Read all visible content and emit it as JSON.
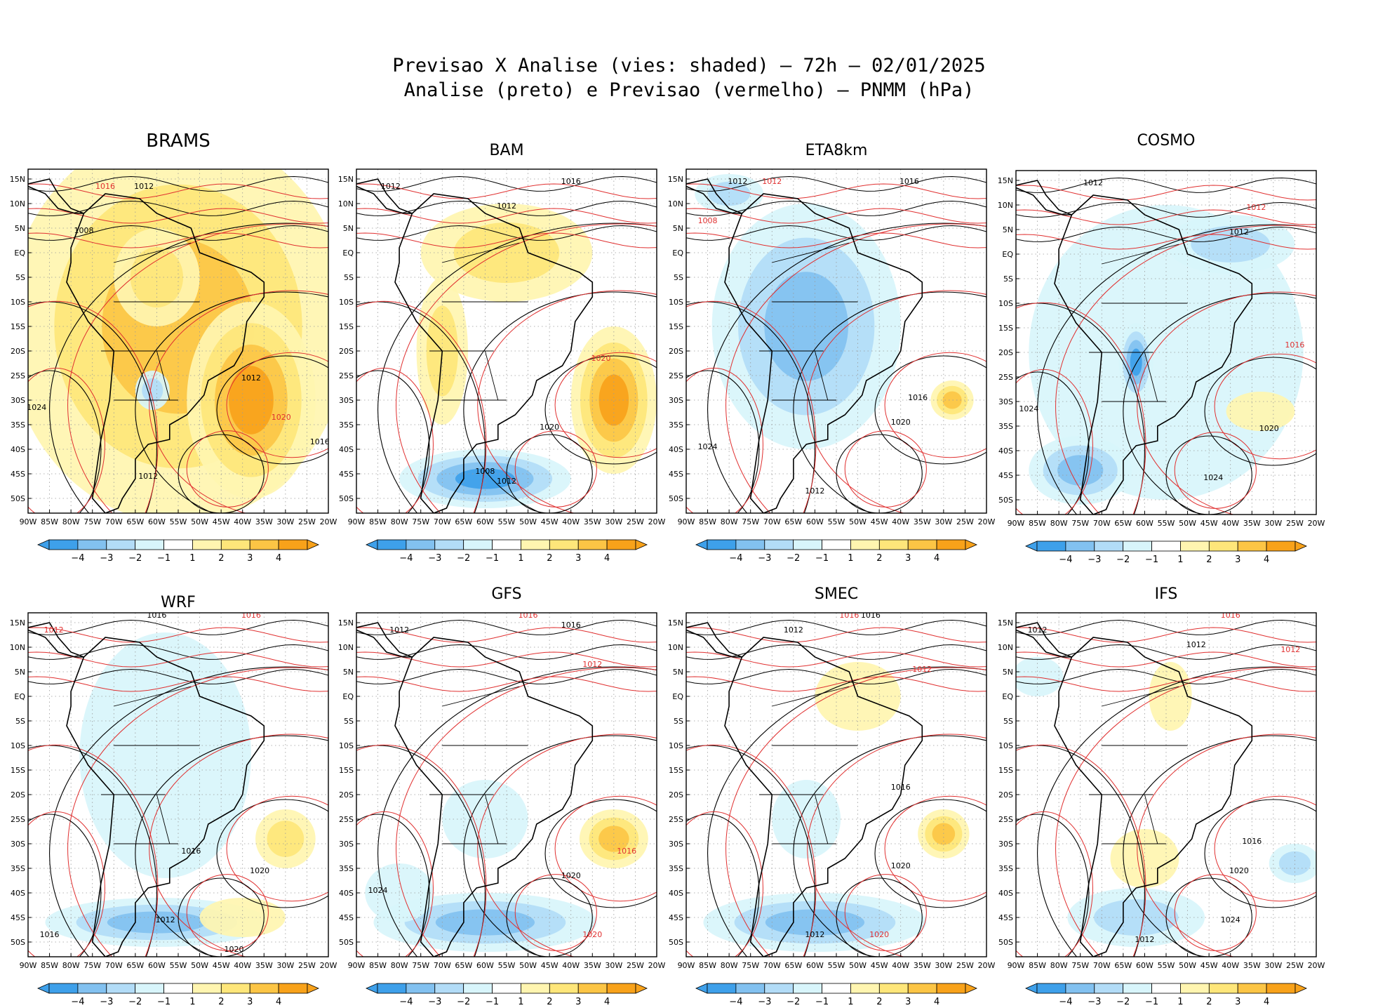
{
  "header": {
    "line1": "Previsao X Analise (vies: shaded) – 72h – 02/01/2025",
    "line2": "Analise (preto) e Previsao (vermelho) – PNMM (hPa)"
  },
  "colors": {
    "neg4": "#3ea0ea",
    "neg3": "#82c1f0",
    "neg2": "#b2dcf7",
    "neg1": "#d8f5fb",
    "zero": "#ffffff",
    "pos1": "#fff5b0",
    "pos2": "#fee67a",
    "pos3": "#fcc545",
    "pos4": "#f8a21a",
    "analysis": "#000000",
    "forecast": "#e03030",
    "land": "#000000",
    "grid": "#9a9a9a"
  },
  "chart_data": {
    "type": "heatmap",
    "variable": "PNMM (hPa)",
    "shading": "vies (forecast - analysis)",
    "lon_range": [
      -90,
      -20
    ],
    "lat_range": [
      -53,
      17
    ],
    "x_ticks": [
      "90W",
      "85W",
      "80W",
      "75W",
      "70W",
      "65W",
      "60W",
      "55W",
      "50W",
      "45W",
      "40W",
      "35W",
      "30W",
      "25W",
      "20W"
    ],
    "y_ticks": [
      "15N",
      "10N",
      "5N",
      "EQ",
      "5S",
      "10S",
      "15S",
      "20S",
      "25S",
      "30S",
      "35S",
      "40S",
      "45S",
      "50S"
    ],
    "colorbar_labels": [
      "−4",
      "−3",
      "−2",
      "−1",
      "1",
      "2",
      "3",
      "4"
    ],
    "panels": [
      {
        "name": "BRAMS",
        "bias_regions": [
          {
            "lon": -55,
            "lat": -15,
            "rlon": 40,
            "rlat": 40,
            "value": 3
          },
          {
            "lon": -38,
            "lat": -30,
            "rlon": 15,
            "rlat": 20,
            "value": 4
          },
          {
            "lon": -60,
            "lat": -5,
            "rlon": 10,
            "rlat": 10,
            "value": 2
          },
          {
            "lon": -61,
            "lat": -28,
            "rlon": 4,
            "rlat": 4,
            "value": -2
          }
        ],
        "labels": [
          {
            "lon": -72,
            "lat": 13,
            "text": "1016",
            "c": "f"
          },
          {
            "lon": -63,
            "lat": 13,
            "text": "1012",
            "c": "a"
          },
          {
            "lon": -77,
            "lat": 4,
            "text": "1008",
            "c": "a"
          },
          {
            "lon": -38,
            "lat": -26,
            "text": "1012",
            "c": "a"
          },
          {
            "lon": -88,
            "lat": -32,
            "text": "1024",
            "c": "a"
          },
          {
            "lon": -31,
            "lat": -34,
            "text": "1020",
            "c": "f"
          },
          {
            "lon": -62,
            "lat": -46,
            "text": "1012",
            "c": "a"
          },
          {
            "lon": -22,
            "lat": -39,
            "text": "1016",
            "c": "a"
          }
        ]
      },
      {
        "name": "BAM",
        "bias_regions": [
          {
            "lon": -55,
            "lat": 0,
            "rlon": 20,
            "rlat": 10,
            "value": 2
          },
          {
            "lon": -30,
            "lat": -30,
            "rlon": 10,
            "rlat": 15,
            "value": 4
          },
          {
            "lon": -60,
            "lat": -46,
            "rlon": 20,
            "rlat": 6,
            "value": -4
          },
          {
            "lon": -70,
            "lat": -20,
            "rlon": 6,
            "rlat": 15,
            "value": 2
          }
        ],
        "labels": [
          {
            "lon": -40,
            "lat": 14,
            "text": "1016",
            "c": "a"
          },
          {
            "lon": -82,
            "lat": 13,
            "text": "1012",
            "c": "a"
          },
          {
            "lon": -55,
            "lat": 9,
            "text": "1012",
            "c": "a"
          },
          {
            "lon": -33,
            "lat": -22,
            "text": "1020",
            "c": "f"
          },
          {
            "lon": -60,
            "lat": -45,
            "text": "1008",
            "c": "a"
          },
          {
            "lon": -55,
            "lat": -47,
            "text": "1012",
            "c": "a"
          },
          {
            "lon": -45,
            "lat": -36,
            "text": "1020",
            "c": "a"
          }
        ]
      },
      {
        "name": "ETA8km",
        "bias_regions": [
          {
            "lon": -62,
            "lat": -15,
            "rlon": 22,
            "rlat": 25,
            "value": -3
          },
          {
            "lon": -28,
            "lat": -30,
            "rlon": 5,
            "rlat": 4,
            "value": 3
          },
          {
            "lon": -80,
            "lat": 12,
            "rlon": 8,
            "rlat": 4,
            "value": -2
          }
        ],
        "labels": [
          {
            "lon": -78,
            "lat": 14,
            "text": "1012",
            "c": "a"
          },
          {
            "lon": -70,
            "lat": 14,
            "text": "1012",
            "c": "f"
          },
          {
            "lon": -38,
            "lat": 14,
            "text": "1016",
            "c": "a"
          },
          {
            "lon": -85,
            "lat": 6,
            "text": "1008",
            "c": "f"
          },
          {
            "lon": -85,
            "lat": -40,
            "text": "1024",
            "c": "a"
          },
          {
            "lon": -40,
            "lat": -35,
            "text": "1020",
            "c": "a"
          },
          {
            "lon": -60,
            "lat": -49,
            "text": "1012",
            "c": "a"
          },
          {
            "lon": -36,
            "lat": -30,
            "text": "1016",
            "c": "a"
          }
        ]
      },
      {
        "name": "COSMO",
        "bias_regions": [
          {
            "lon": -55,
            "lat": -20,
            "rlon": 32,
            "rlat": 30,
            "value": -1
          },
          {
            "lon": -75,
            "lat": -44,
            "rlon": 12,
            "rlat": 7,
            "value": -3
          },
          {
            "lon": -40,
            "lat": 2,
            "rlon": 15,
            "rlat": 6,
            "value": -2
          },
          {
            "lon": -62,
            "lat": -22,
            "rlon": 4,
            "rlat": 8,
            "value": -4
          },
          {
            "lon": -33,
            "lat": -32,
            "rlon": 8,
            "rlat": 4,
            "value": 1
          }
        ],
        "labels": [
          {
            "lon": -72,
            "lat": 14,
            "text": "1012",
            "c": "a"
          },
          {
            "lon": -34,
            "lat": 9,
            "text": "1012",
            "c": "f"
          },
          {
            "lon": -38,
            "lat": 4,
            "text": "1012",
            "c": "a"
          },
          {
            "lon": -87,
            "lat": -32,
            "text": "1024",
            "c": "a"
          },
          {
            "lon": -31,
            "lat": -36,
            "text": "1020",
            "c": "a"
          },
          {
            "lon": -44,
            "lat": -46,
            "text": "1024",
            "c": "a"
          },
          {
            "lon": -25,
            "lat": -19,
            "text": "1016",
            "c": "f"
          }
        ]
      },
      {
        "name": "WRF",
        "bias_regions": [
          {
            "lon": -58,
            "lat": -12,
            "rlon": 20,
            "rlat": 25,
            "value": -1
          },
          {
            "lon": -30,
            "lat": -29,
            "rlon": 7,
            "rlat": 6,
            "value": 2
          },
          {
            "lon": -60,
            "lat": -46,
            "rlon": 26,
            "rlat": 5,
            "value": -3
          },
          {
            "lon": -40,
            "lat": -45,
            "rlon": 10,
            "rlat": 4,
            "value": 1
          }
        ],
        "labels": [
          {
            "lon": -60,
            "lat": 16,
            "text": "1016",
            "c": "a"
          },
          {
            "lon": -38,
            "lat": 16,
            "text": "1016",
            "c": "f"
          },
          {
            "lon": -84,
            "lat": 13,
            "text": "1012",
            "c": "f"
          },
          {
            "lon": -52,
            "lat": -32,
            "text": "1016",
            "c": "a"
          },
          {
            "lon": -85,
            "lat": -49,
            "text": "1016",
            "c": "a"
          },
          {
            "lon": -36,
            "lat": -36,
            "text": "1020",
            "c": "a"
          },
          {
            "lon": -58,
            "lat": -46,
            "text": "1012",
            "c": "a"
          },
          {
            "lon": -42,
            "lat": -52,
            "text": "1020",
            "c": "a"
          }
        ]
      },
      {
        "name": "GFS",
        "bias_regions": [
          {
            "lon": -60,
            "lat": -46,
            "rlon": 26,
            "rlat": 6,
            "value": -3
          },
          {
            "lon": -30,
            "lat": -29,
            "rlon": 8,
            "rlat": 6,
            "value": 3
          },
          {
            "lon": -60,
            "lat": -25,
            "rlon": 10,
            "rlat": 8,
            "value": -1
          },
          {
            "lon": -80,
            "lat": -40,
            "rlon": 8,
            "rlat": 6,
            "value": -1
          }
        ],
        "labels": [
          {
            "lon": -80,
            "lat": 13,
            "text": "1012",
            "c": "a"
          },
          {
            "lon": -40,
            "lat": 14,
            "text": "1016",
            "c": "a"
          },
          {
            "lon": -50,
            "lat": 16,
            "text": "1016",
            "c": "f"
          },
          {
            "lon": -35,
            "lat": 6,
            "text": "1012",
            "c": "f"
          },
          {
            "lon": -85,
            "lat": -40,
            "text": "1024",
            "c": "a"
          },
          {
            "lon": -40,
            "lat": -37,
            "text": "1020",
            "c": "a"
          },
          {
            "lon": -35,
            "lat": -49,
            "text": "1020",
            "c": "f"
          },
          {
            "lon": -27,
            "lat": -32,
            "text": "1016",
            "c": "f"
          }
        ]
      },
      {
        "name": "SMEC",
        "bias_regions": [
          {
            "lon": -60,
            "lat": -46,
            "rlon": 26,
            "rlat": 6,
            "value": -3
          },
          {
            "lon": -30,
            "lat": -28,
            "rlon": 6,
            "rlat": 5,
            "value": 3
          },
          {
            "lon": -50,
            "lat": 0,
            "rlon": 10,
            "rlat": 7,
            "value": 1
          },
          {
            "lon": -62,
            "lat": -25,
            "rlon": 8,
            "rlat": 8,
            "value": -1
          }
        ],
        "labels": [
          {
            "lon": -65,
            "lat": 13,
            "text": "1012",
            "c": "a"
          },
          {
            "lon": -47,
            "lat": 16,
            "text": "1016",
            "c": "a"
          },
          {
            "lon": -52,
            "lat": 16,
            "text": "1016",
            "c": "f"
          },
          {
            "lon": -35,
            "lat": 5,
            "text": "1012",
            "c": "f"
          },
          {
            "lon": -40,
            "lat": -19,
            "text": "1016",
            "c": "a"
          },
          {
            "lon": -40,
            "lat": -35,
            "text": "1020",
            "c": "a"
          },
          {
            "lon": -60,
            "lat": -49,
            "text": "1012",
            "c": "a"
          },
          {
            "lon": -45,
            "lat": -49,
            "text": "1020",
            "c": "f"
          }
        ]
      },
      {
        "name": "IFS",
        "bias_regions": [
          {
            "lon": -62,
            "lat": -45,
            "rlon": 16,
            "rlat": 6,
            "value": -2
          },
          {
            "lon": -60,
            "lat": -33,
            "rlon": 8,
            "rlat": 6,
            "value": 1
          },
          {
            "lon": -54,
            "lat": 0,
            "rlon": 5,
            "rlat": 7,
            "value": 1
          },
          {
            "lon": -85,
            "lat": 4,
            "rlon": 6,
            "rlat": 4,
            "value": -1
          },
          {
            "lon": -25,
            "lat": -34,
            "rlon": 6,
            "rlat": 4,
            "value": -2
          }
        ],
        "labels": [
          {
            "lon": -85,
            "lat": 13,
            "text": "1012",
            "c": "a"
          },
          {
            "lon": -40,
            "lat": 16,
            "text": "1016",
            "c": "f"
          },
          {
            "lon": -48,
            "lat": 10,
            "text": "1012",
            "c": "a"
          },
          {
            "lon": -26,
            "lat": 9,
            "text": "1012",
            "c": "f"
          },
          {
            "lon": -38,
            "lat": -36,
            "text": "1020",
            "c": "a"
          },
          {
            "lon": -40,
            "lat": -46,
            "text": "1024",
            "c": "a"
          },
          {
            "lon": -60,
            "lat": -50,
            "text": "1012",
            "c": "a"
          },
          {
            "lon": -35,
            "lat": -30,
            "text": "1016",
            "c": "a"
          }
        ]
      }
    ]
  }
}
